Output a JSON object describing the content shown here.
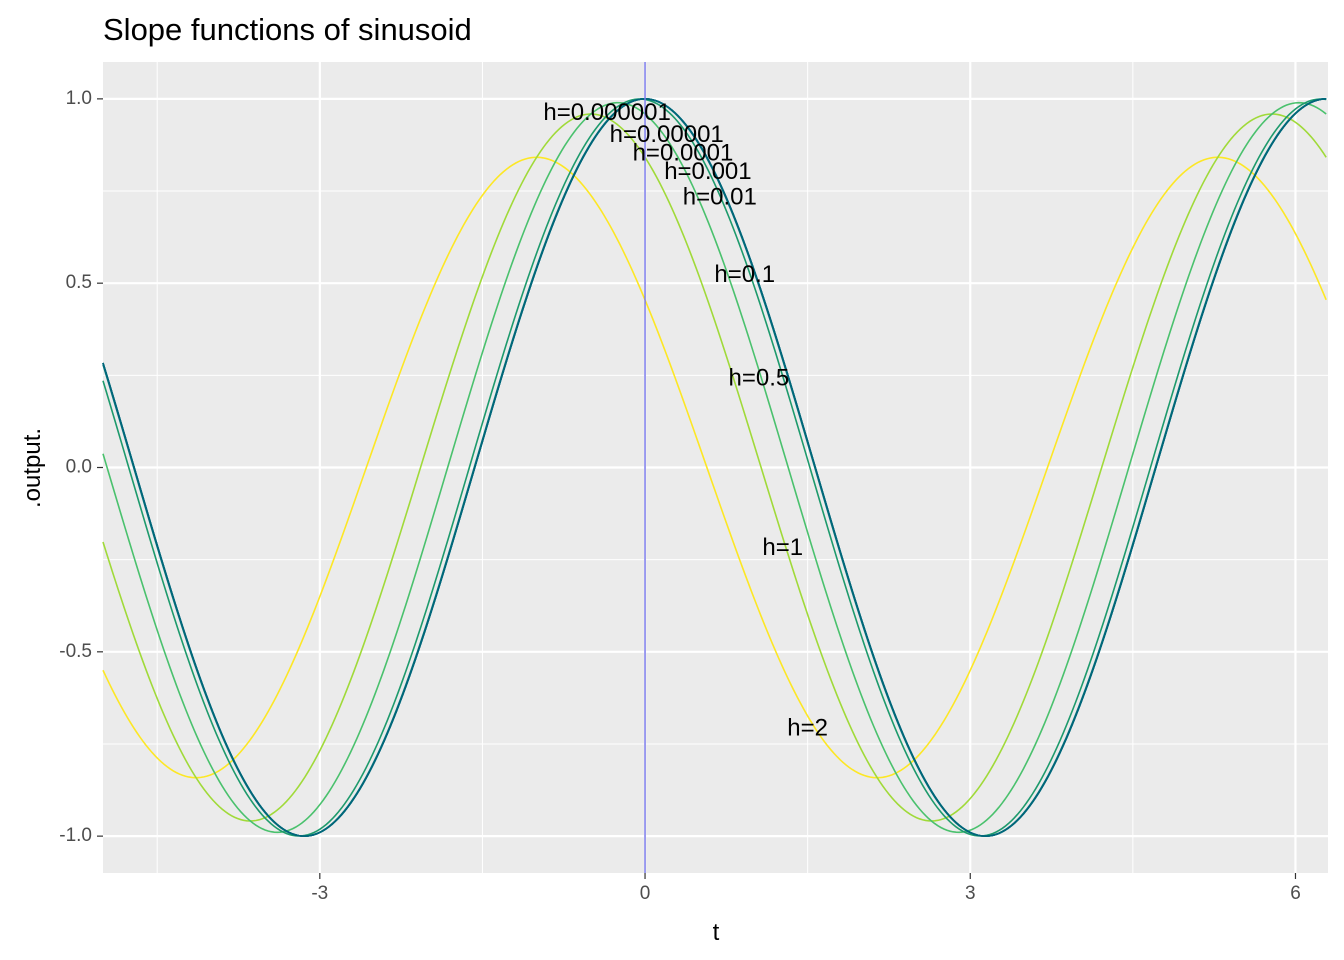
{
  "chart_data": {
    "type": "line",
    "title": "Slope functions of sinusoid",
    "xlabel": "t",
    "ylabel": ".output.",
    "xlim": [
      -5,
      6.3
    ],
    "ylim": [
      -1.1,
      1.1
    ],
    "x_ticks": [
      -3,
      0,
      3,
      6
    ],
    "x_tick_labels": [
      "-3",
      "0",
      "3",
      "6"
    ],
    "y_ticks": [
      -1.0,
      -0.5,
      0.0,
      0.5,
      1.0
    ],
    "y_tick_labels": [
      "-1.0",
      "-0.5",
      "0.0",
      "0.5",
      "1.0"
    ],
    "grid": true,
    "vline": {
      "x": 0,
      "color": "#7b7bea"
    },
    "background": "#ebebeb",
    "series": [
      {
        "name": "h=0.000001",
        "h": 1e-06,
        "color": "#00667a",
        "label_pos": [
          -0.35,
          0.96
        ]
      },
      {
        "name": "h=0.00001",
        "h": 1e-05,
        "color": "#016b7c",
        "label_pos": [
          0.2,
          0.9
        ]
      },
      {
        "name": "h=0.0001",
        "h": 0.0001,
        "color": "#04717e",
        "label_pos": [
          0.35,
          0.85
        ]
      },
      {
        "name": "h=0.001",
        "h": 0.001,
        "color": "#0a787f",
        "label_pos": [
          0.58,
          0.8
        ]
      },
      {
        "name": "h=0.01",
        "h": 0.01,
        "color": "#147f7f",
        "label_pos": [
          0.69,
          0.73
        ]
      },
      {
        "name": "h=0.1",
        "h": 0.1,
        "color": "#1d9a6c",
        "label_pos": [
          0.92,
          0.52
        ]
      },
      {
        "name": "h=0.5",
        "h": 0.5,
        "color": "#4ac16d",
        "label_pos": [
          1.05,
          0.24
        ]
      },
      {
        "name": "h=1",
        "h": 1,
        "color": "#a0da39",
        "label_pos": [
          1.27,
          -0.22
        ]
      },
      {
        "name": "h=2",
        "h": 2,
        "color": "#fde725",
        "label_pos": [
          1.5,
          -0.71
        ]
      }
    ]
  }
}
